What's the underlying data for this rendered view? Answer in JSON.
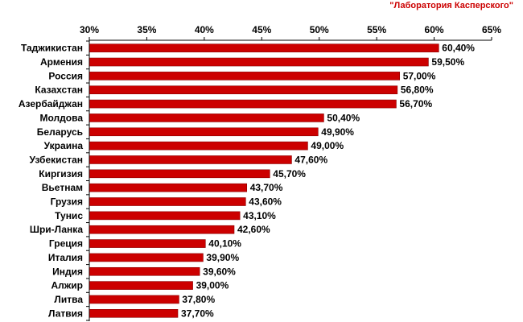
{
  "source": "\"Лаборатория Касперского\"",
  "colors": {
    "bar": "#cc0000",
    "bar_edge": "#8a0000",
    "axis": "#000000"
  },
  "chart_data": {
    "type": "bar",
    "orientation": "horizontal",
    "title": "",
    "xlabel": "",
    "ylabel": "",
    "xlim": [
      30,
      65
    ],
    "x_axis_position": "top",
    "grid": false,
    "ticks": [
      30,
      35,
      40,
      45,
      50,
      55,
      60,
      65
    ],
    "tick_labels": [
      "30%",
      "35%",
      "40%",
      "45%",
      "50%",
      "55%",
      "60%",
      "65%"
    ],
    "categories": [
      "Таджикистан",
      "Армения",
      "Россия",
      "Казахстан",
      "Азербайджан",
      "Молдова",
      "Беларусь",
      "Украина",
      "Узбекистан",
      "Киргизия",
      "Вьетнам",
      "Грузия",
      "Тунис",
      "Шри-Ланка",
      "Греция",
      "Италия",
      "Индия",
      "Алжир",
      "Литва",
      "Латвия"
    ],
    "values": [
      60.4,
      59.5,
      57.0,
      56.8,
      56.7,
      50.4,
      49.9,
      49.0,
      47.6,
      45.7,
      43.7,
      43.6,
      43.1,
      42.6,
      40.1,
      39.9,
      39.6,
      39.0,
      37.8,
      37.7
    ],
    "value_labels": [
      "60,40%",
      "59,50%",
      "57,00%",
      "56,80%",
      "56,70%",
      "50,40%",
      "49,90%",
      "49,00%",
      "47,60%",
      "45,70%",
      "43,70%",
      "43,60%",
      "43,10%",
      "42,60%",
      "40,10%",
      "39,90%",
      "39,60%",
      "39,00%",
      "37,80%",
      "37,70%"
    ]
  }
}
